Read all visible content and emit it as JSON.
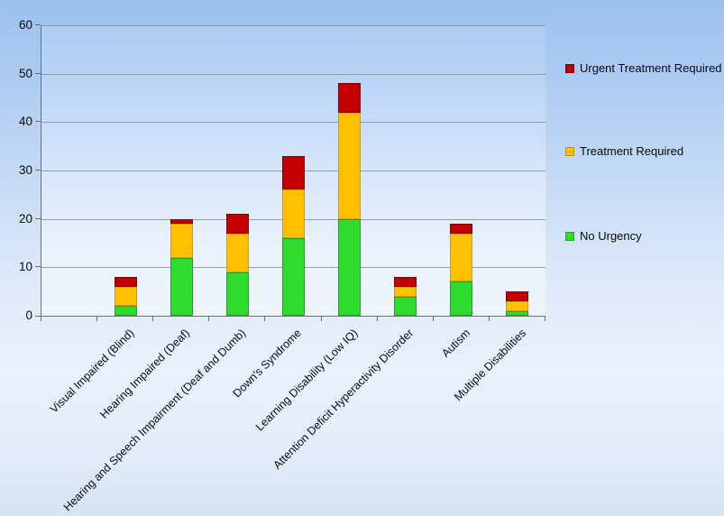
{
  "chart_data": {
    "type": "bar",
    "stacked": true,
    "title": "",
    "xlabel": "",
    "ylabel": "",
    "grid": true,
    "legend_position": "right",
    "ylim": [
      0,
      60
    ],
    "yticks": [
      0,
      10,
      20,
      30,
      40,
      50,
      60
    ],
    "leading_empty_category_slots": 1,
    "categories": [
      "Visual Impaired (Blind)",
      "Hearing Impaired (Deaf)",
      "Hearing and Speech Impairment (Deaf and Dumb)",
      "Down's Syndrome",
      "Learning Disability (Low IQ)",
      "Attention Deficit Hyperactivity Disorder",
      "Autism",
      "Multiple Disabilities"
    ],
    "series": [
      {
        "name": "No Urgency",
        "color": "#2EDB2E",
        "border": "#1CA81C",
        "values": [
          2,
          12,
          9,
          16,
          20,
          4,
          7,
          1
        ]
      },
      {
        "name": "Treatment Required",
        "color": "#FFC000",
        "border": "#D39D00",
        "values": [
          4,
          7,
          8,
          10,
          22,
          2,
          10,
          2
        ]
      },
      {
        "name": "Urgent Treatment Required",
        "color": "#C20000",
        "border": "#8E0000",
        "values": [
          2,
          1,
          4,
          7,
          6,
          2,
          2,
          2
        ]
      }
    ],
    "legend": [
      {
        "label": "Urgent Treatment Required",
        "color": "#C20000"
      },
      {
        "label": "Treatment Required",
        "color": "#FFC000"
      },
      {
        "label": "No Urgency",
        "color": "#2EDB2E"
      }
    ]
  },
  "colors": {
    "background_top": "#9CC0EE",
    "background_bottom": "#D5E3F5",
    "plot_top": "#ACCCF3",
    "plot_bottom": "#EFF5FD",
    "gridline": "#8490A0",
    "axis": "#6F6F6F",
    "text": "#0A0A0A"
  }
}
